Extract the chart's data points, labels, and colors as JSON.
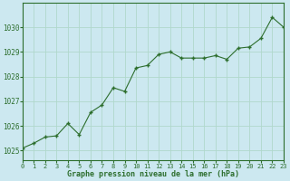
{
  "x": [
    0,
    1,
    2,
    3,
    4,
    5,
    6,
    7,
    8,
    9,
    10,
    11,
    12,
    13,
    14,
    15,
    16,
    17,
    18,
    19,
    20,
    21,
    22,
    23
  ],
  "y": [
    1025.1,
    1025.3,
    1025.55,
    1025.6,
    1026.1,
    1025.65,
    1026.55,
    1026.85,
    1027.55,
    1027.4,
    1028.35,
    1028.45,
    1028.9,
    1029.0,
    1028.75,
    1028.75,
    1028.75,
    1028.85,
    1028.7,
    1029.15,
    1029.2,
    1029.55,
    1030.4,
    1030.0
  ],
  "line_color": "#2d6e2d",
  "marker_color": "#2d6e2d",
  "bg_color": "#cce8f0",
  "grid_color": "#b0d8cc",
  "xlabel": "Graphe pression niveau de la mer (hPa)",
  "ylim": [
    1024.6,
    1031.0
  ],
  "xlim": [
    0,
    23
  ],
  "yticks": [
    1025,
    1026,
    1027,
    1028,
    1029,
    1030
  ],
  "xticks": [
    0,
    1,
    2,
    3,
    4,
    5,
    6,
    7,
    8,
    9,
    10,
    11,
    12,
    13,
    14,
    15,
    16,
    17,
    18,
    19,
    20,
    21,
    22,
    23
  ]
}
